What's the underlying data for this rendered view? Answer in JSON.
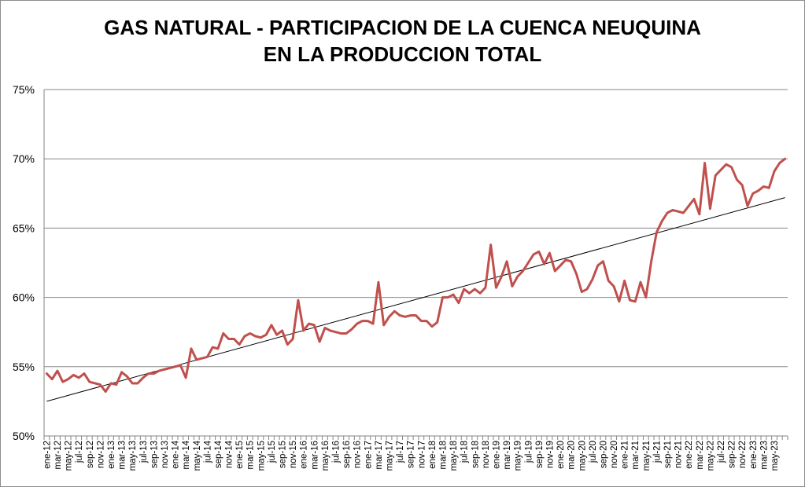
{
  "chart_data": {
    "type": "line",
    "title_lines": [
      "GAS NATURAL - PARTICIPACION DE LA CUENCA NEUQUINA",
      "EN LA PRODUCCION TOTAL"
    ],
    "xlabel": "",
    "ylabel": "",
    "ylim": [
      50,
      75
    ],
    "yticks": [
      50,
      55,
      60,
      65,
      70,
      75
    ],
    "ytick_suffix": "%",
    "grid": true,
    "legend": "none",
    "categories": [
      "ene-12",
      "feb-12",
      "mar-12",
      "abr-12",
      "may-12",
      "jun-12",
      "jul-12",
      "ago-12",
      "sep-12",
      "oct-12",
      "nov-12",
      "dic-12",
      "ene-13",
      "feb-13",
      "mar-13",
      "abr-13",
      "may-13",
      "jun-13",
      "jul-13",
      "ago-13",
      "sep-13",
      "oct-13",
      "nov-13",
      "dic-13",
      "ene-14",
      "feb-14",
      "mar-14",
      "abr-14",
      "may-14",
      "jun-14",
      "jul-14",
      "ago-14",
      "sep-14",
      "oct-14",
      "nov-14",
      "dic-14",
      "ene-15",
      "feb-15",
      "mar-15",
      "abr-15",
      "may-15",
      "jun-15",
      "jul-15",
      "ago-15",
      "sep-15",
      "oct-15",
      "nov-15",
      "dic-15",
      "ene-16",
      "feb-16",
      "mar-16",
      "abr-16",
      "may-16",
      "jun-16",
      "jul-16",
      "ago-16",
      "sep-16",
      "oct-16",
      "nov-16",
      "dic-16",
      "ene-17",
      "feb-17",
      "mar-17",
      "abr-17",
      "may-17",
      "jun-17",
      "jul-17",
      "ago-17",
      "sep-17",
      "oct-17",
      "nov-17",
      "dic-17",
      "ene-18",
      "feb-18",
      "mar-18",
      "abr-18",
      "may-18",
      "jun-18",
      "jul-18",
      "ago-18",
      "sep-18",
      "oct-18",
      "nov-18",
      "dic-18",
      "ene-19",
      "feb-19",
      "mar-19",
      "abr-19",
      "may-19",
      "jun-19",
      "jul-19",
      "ago-19",
      "sep-19",
      "oct-19",
      "nov-19",
      "dic-19",
      "ene-20",
      "feb-20",
      "mar-20",
      "abr-20",
      "may-20",
      "jun-20",
      "jul-20",
      "ago-20",
      "sep-20",
      "oct-20",
      "nov-20",
      "dic-20",
      "ene-21",
      "feb-21",
      "mar-21",
      "abr-21",
      "may-21",
      "jun-21",
      "jul-21",
      "ago-21",
      "sep-21",
      "oct-21",
      "nov-21",
      "dic-21",
      "ene-22",
      "feb-22",
      "mar-22",
      "abr-22",
      "may-22",
      "jun-22",
      "jul-22",
      "ago-22",
      "sep-22",
      "oct-22",
      "nov-22",
      "dic-22",
      "ene-23",
      "feb-23",
      "mar-23",
      "abr-23",
      "may-23",
      "jun-23",
      "jul-23"
    ],
    "x_tick_labels_shown": [
      "ene-12",
      "mar-12",
      "may-12",
      "jul-12",
      "sep-12",
      "nov-12",
      "ene-13",
      "mar-13",
      "may-13",
      "jul-13",
      "sep-13",
      "nov-13",
      "ene-14",
      "mar-14",
      "may-14",
      "jul-14",
      "sep-14",
      "nov-14",
      "ene-15",
      "mar-15",
      "may-15",
      "jul-15",
      "sep-15",
      "nov-15",
      "ene-16",
      "mar-16",
      "may-16",
      "jul-16",
      "sep-16",
      "nov-16",
      "ene-17",
      "mar-17",
      "may-17",
      "jul-17",
      "sep-17",
      "nov-17",
      "ene-18",
      "mar-18",
      "may-18",
      "jul-18",
      "sep-18",
      "nov-18",
      "ene-19",
      "mar-19",
      "may-19",
      "jul-19",
      "sep-19",
      "nov-19",
      "ene-20",
      "mar-20",
      "may-20",
      "jul-20",
      "sep-20",
      "nov-20",
      "ene-21",
      "mar-21",
      "may-21",
      "jul-21",
      "sep-21",
      "nov-21",
      "ene-22",
      "mar-22",
      "may-22",
      "jul-22",
      "sep-22",
      "nov-22",
      "ene-23",
      "mar-23",
      "may-23"
    ],
    "series": [
      {
        "color": "#c0504d",
        "values": [
          54.5,
          54.1,
          54.7,
          53.9,
          54.1,
          54.4,
          54.2,
          54.5,
          53.9,
          53.8,
          53.7,
          53.2,
          53.8,
          53.7,
          54.6,
          54.3,
          53.8,
          53.8,
          54.2,
          54.5,
          54.5,
          54.7,
          54.8,
          54.9,
          55.0,
          55.1,
          54.2,
          56.3,
          55.5,
          55.6,
          55.7,
          56.4,
          56.3,
          57.4,
          57.0,
          57.0,
          56.6,
          57.2,
          57.4,
          57.2,
          57.1,
          57.3,
          58.0,
          57.3,
          57.6,
          56.6,
          57.0,
          59.8,
          57.6,
          58.1,
          58.0,
          56.8,
          57.8,
          57.6,
          57.5,
          57.4,
          57.4,
          57.7,
          58.1,
          58.3,
          58.3,
          58.1,
          61.1,
          58.0,
          58.6,
          59.0,
          58.7,
          58.6,
          58.7,
          58.7,
          58.3,
          58.3,
          57.9,
          58.2,
          60.0,
          60.0,
          60.2,
          59.6,
          60.6,
          60.3,
          60.6,
          60.3,
          60.7,
          63.8,
          60.7,
          61.5,
          62.6,
          60.8,
          61.5,
          61.9,
          62.5,
          63.1,
          63.3,
          62.4,
          63.2,
          61.9,
          62.3,
          62.7,
          62.6,
          61.7,
          60.4,
          60.6,
          61.3,
          62.3,
          62.6,
          61.2,
          60.8,
          59.7,
          61.2,
          59.8,
          59.7,
          61.1,
          60.0,
          62.6,
          64.7,
          65.5,
          66.1,
          66.3,
          66.2,
          66.1,
          66.6,
          67.1,
          66.0,
          69.7,
          66.4,
          68.8,
          69.2,
          69.6,
          69.4,
          68.5,
          68.1,
          66.6,
          67.5,
          67.7,
          68.0,
          67.9,
          69.1,
          69.7,
          70.0
        ]
      }
    ],
    "trendline": {
      "type": "linear",
      "color": "#000000",
      "start": 52.5,
      "end": 67.2
    }
  }
}
